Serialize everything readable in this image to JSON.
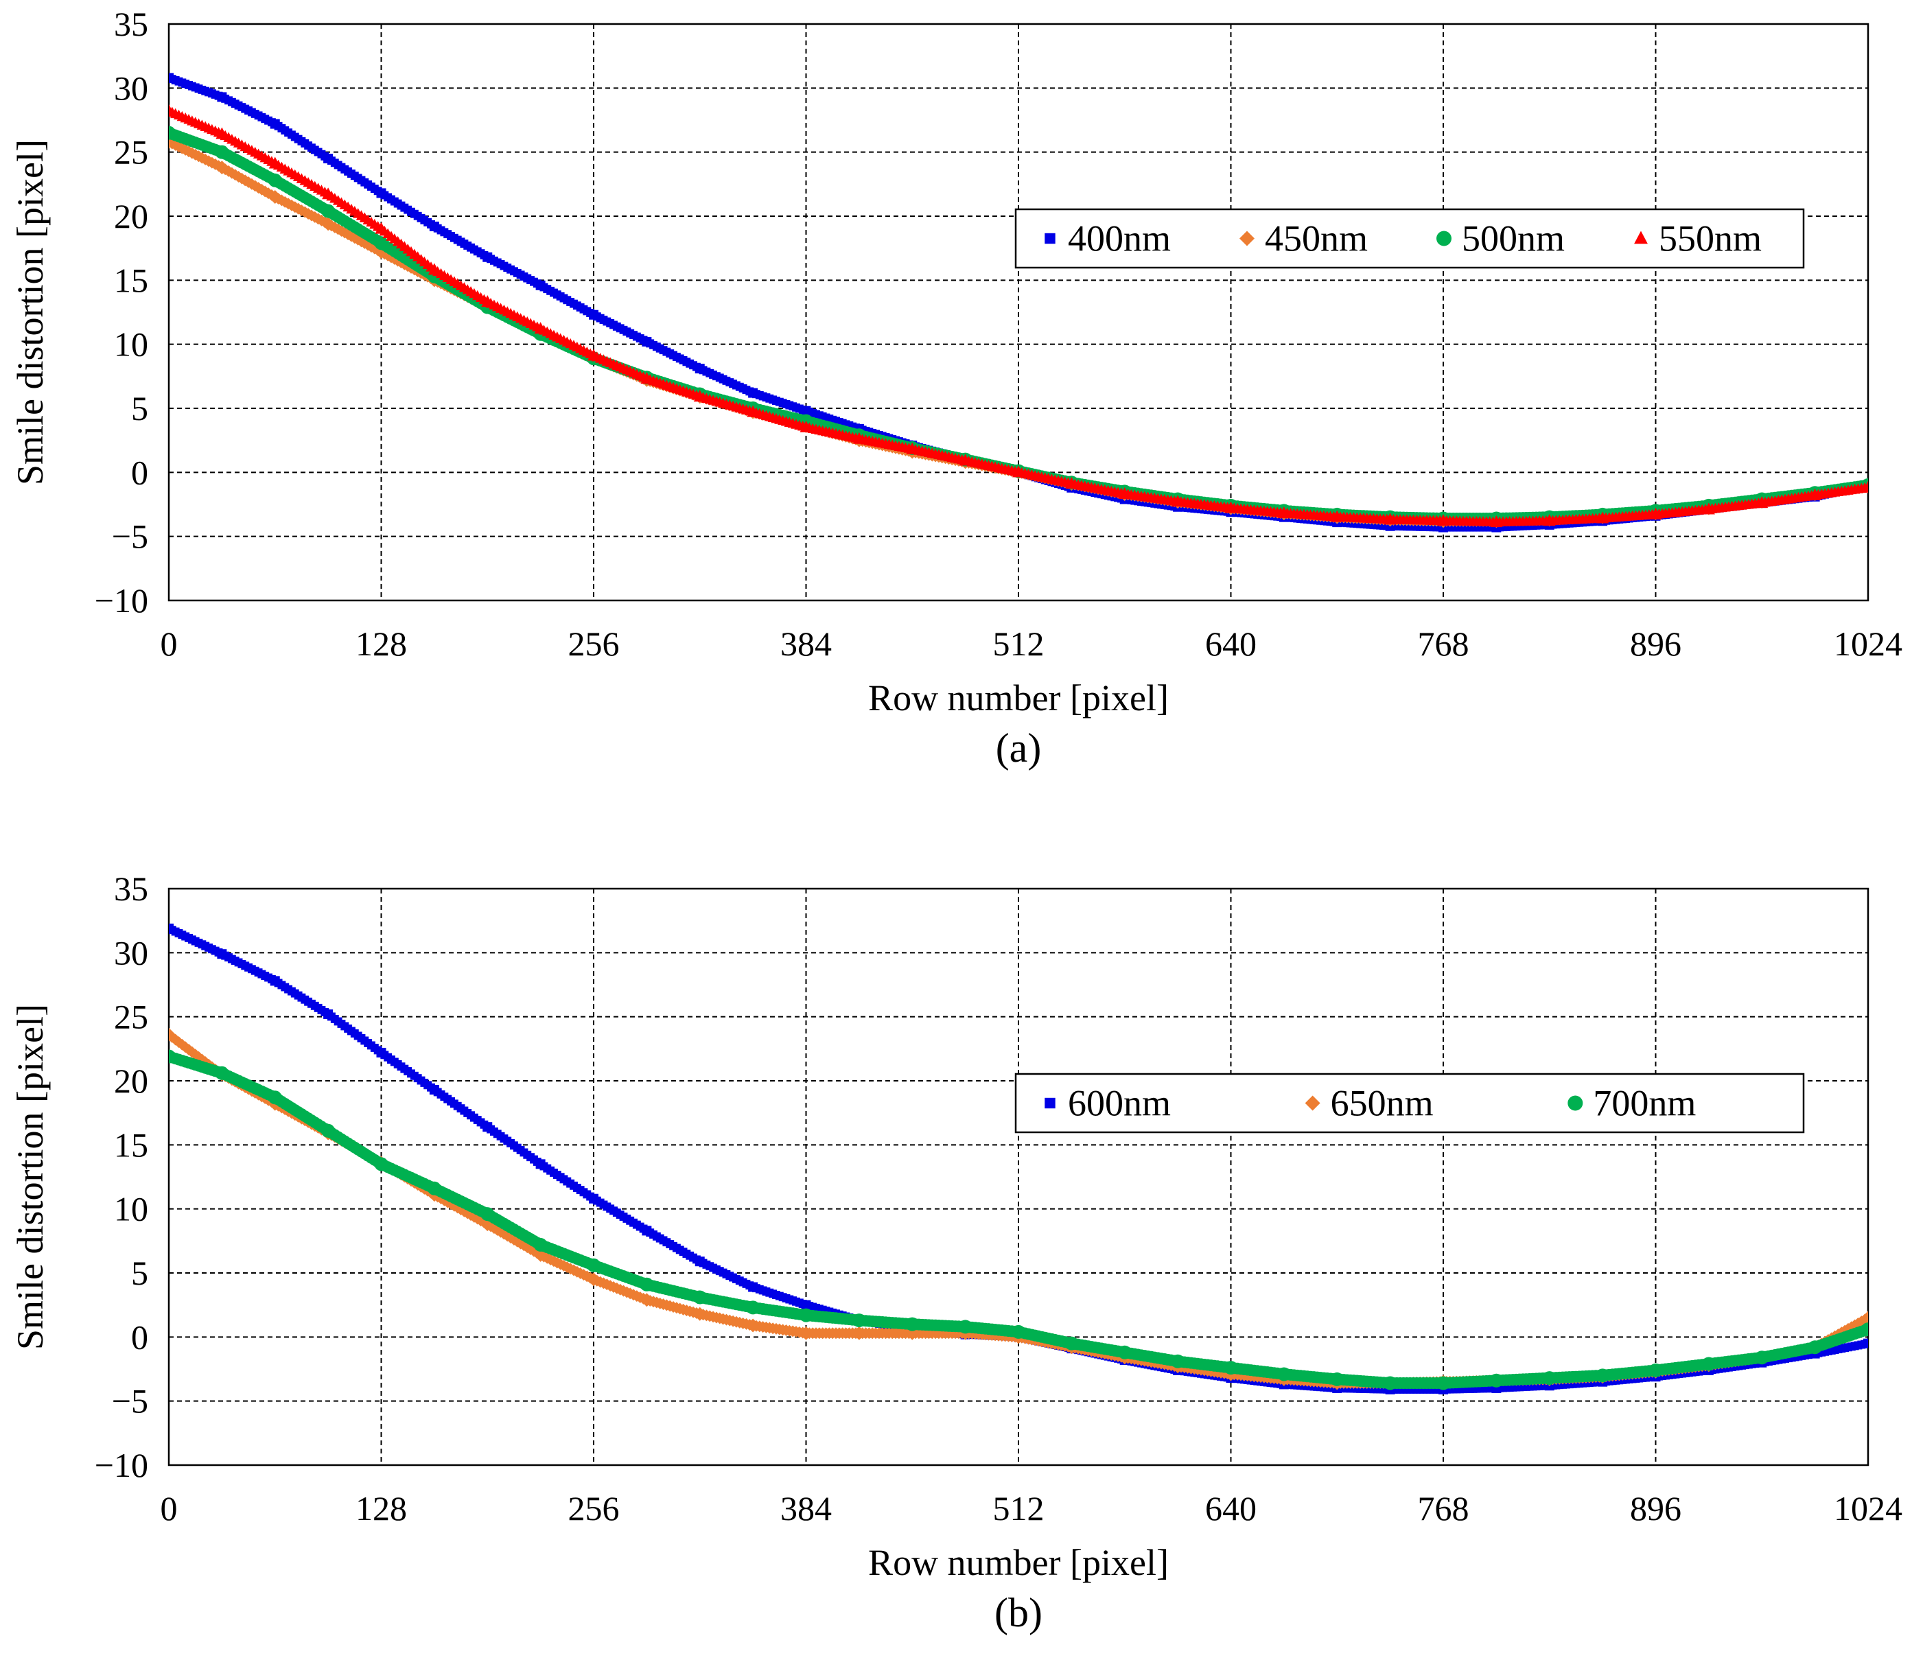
{
  "chart_data": [
    {
      "panel_label": "(a)",
      "type": "scatter",
      "xlabel": "Row number [pixel]",
      "ylabel": "Smile distortion [pixel]",
      "xlim": [
        0,
        1024
      ],
      "ylim": [
        -10,
        35
      ],
      "xticks": [
        0,
        128,
        256,
        384,
        512,
        640,
        768,
        896,
        1024
      ],
      "yticks": [
        -10,
        -5,
        0,
        5,
        10,
        15,
        20,
        25,
        30,
        35
      ],
      "ytick_labels": [
        "−10",
        "−5",
        "0",
        "5",
        "10",
        "15",
        "20",
        "25",
        "30",
        "35"
      ],
      "grid": true,
      "legend_position": "upper-right",
      "series": [
        {
          "name": "400nm",
          "color": "#0000e6",
          "marker": "square",
          "x": [
            0,
            32,
            64,
            96,
            128,
            160,
            192,
            224,
            256,
            288,
            320,
            352,
            384,
            416,
            448,
            480,
            512,
            544,
            576,
            608,
            640,
            672,
            704,
            736,
            768,
            800,
            832,
            864,
            896,
            928,
            960,
            992,
            1024
          ],
          "values": [
            30.8,
            29.3,
            27.2,
            24.5,
            21.8,
            19.2,
            16.8,
            14.6,
            12.3,
            10.2,
            8.1,
            6.2,
            4.8,
            3.4,
            2.1,
            1.0,
            0.0,
            -1.2,
            -2.1,
            -2.7,
            -3.1,
            -3.5,
            -3.9,
            -4.2,
            -4.3,
            -4.3,
            -4.1,
            -3.8,
            -3.4,
            -2.9,
            -2.4,
            -1.9,
            -1.0
          ]
        },
        {
          "name": "450nm",
          "color": "#ed7d31",
          "marker": "diamond",
          "x": [
            0,
            32,
            64,
            96,
            128,
            160,
            192,
            224,
            256,
            288,
            320,
            352,
            384,
            416,
            448,
            480,
            512,
            544,
            576,
            608,
            640,
            672,
            704,
            736,
            768,
            800,
            832,
            864,
            896,
            928,
            960,
            992,
            1024
          ],
          "values": [
            25.8,
            23.8,
            21.5,
            19.4,
            17.2,
            15.0,
            12.9,
            10.9,
            8.9,
            7.2,
            5.9,
            4.7,
            3.6,
            2.5,
            1.6,
            0.8,
            0.0,
            -0.9,
            -1.7,
            -2.3,
            -2.8,
            -3.2,
            -3.5,
            -3.7,
            -3.8,
            -3.8,
            -3.7,
            -3.5,
            -3.2,
            -2.8,
            -2.3,
            -1.7,
            -1.1
          ]
        },
        {
          "name": "500nm",
          "color": "#00b050",
          "marker": "circle",
          "x": [
            0,
            32,
            64,
            96,
            128,
            160,
            192,
            224,
            256,
            288,
            320,
            352,
            384,
            416,
            448,
            480,
            512,
            544,
            576,
            608,
            640,
            672,
            704,
            736,
            768,
            800,
            832,
            864,
            896,
            928,
            960,
            992,
            1024
          ],
          "values": [
            26.5,
            25.0,
            22.8,
            20.4,
            17.9,
            15.3,
            12.9,
            10.8,
            8.9,
            7.4,
            6.1,
            5.0,
            4.0,
            2.9,
            1.9,
            1.0,
            0.1,
            -0.8,
            -1.5,
            -2.1,
            -2.6,
            -3.0,
            -3.3,
            -3.5,
            -3.6,
            -3.6,
            -3.5,
            -3.3,
            -3.0,
            -2.6,
            -2.1,
            -1.6,
            -1.0
          ]
        },
        {
          "name": "550nm",
          "color": "#ff0000",
          "marker": "triangle",
          "x": [
            0,
            32,
            64,
            96,
            128,
            160,
            192,
            224,
            256,
            288,
            320,
            352,
            384,
            416,
            448,
            480,
            512,
            544,
            576,
            608,
            640,
            672,
            704,
            736,
            768,
            800,
            832,
            864,
            896,
            928,
            960,
            992,
            1024
          ],
          "values": [
            28.2,
            26.4,
            24.1,
            21.7,
            19.0,
            15.8,
            13.3,
            11.2,
            9.1,
            7.3,
            5.9,
            4.7,
            3.5,
            2.6,
            1.8,
            0.9,
            0.0,
            -0.9,
            -1.7,
            -2.3,
            -2.8,
            -3.2,
            -3.5,
            -3.7,
            -3.8,
            -3.9,
            -3.8,
            -3.6,
            -3.3,
            -2.9,
            -2.4,
            -1.8,
            -1.2
          ]
        }
      ]
    },
    {
      "panel_label": "(b)",
      "type": "scatter",
      "xlabel": "Row number [pixel]",
      "ylabel": "Smile distortion [pixel]",
      "xlim": [
        0,
        1024
      ],
      "ylim": [
        -10,
        35
      ],
      "xticks": [
        0,
        128,
        256,
        384,
        512,
        640,
        768,
        896,
        1024
      ],
      "yticks": [
        -10,
        -5,
        0,
        5,
        10,
        15,
        20,
        25,
        30,
        35
      ],
      "ytick_labels": [
        "−10",
        "−5",
        "0",
        "5",
        "10",
        "15",
        "20",
        "25",
        "30",
        "35"
      ],
      "grid": true,
      "legend_position": "upper-right",
      "series": [
        {
          "name": "600nm",
          "color": "#0000e6",
          "marker": "square",
          "x": [
            0,
            32,
            64,
            96,
            128,
            160,
            192,
            224,
            256,
            288,
            320,
            352,
            384,
            416,
            448,
            480,
            512,
            544,
            576,
            608,
            640,
            672,
            704,
            736,
            768,
            800,
            832,
            864,
            896,
            928,
            960,
            992,
            1024
          ],
          "values": [
            31.9,
            29.9,
            27.8,
            25.2,
            22.2,
            19.3,
            16.4,
            13.5,
            10.8,
            8.3,
            5.9,
            3.9,
            2.5,
            1.3,
            0.6,
            0.2,
            0.0,
            -0.9,
            -1.8,
            -2.6,
            -3.2,
            -3.7,
            -4.0,
            -4.1,
            -4.1,
            -4.0,
            -3.8,
            -3.5,
            -3.1,
            -2.6,
            -2.0,
            -1.3,
            -0.5
          ]
        },
        {
          "name": "650nm",
          "color": "#ed7d31",
          "marker": "diamond",
          "x": [
            0,
            32,
            64,
            96,
            128,
            160,
            192,
            224,
            256,
            288,
            320,
            352,
            384,
            416,
            448,
            480,
            512,
            544,
            576,
            608,
            640,
            672,
            704,
            736,
            768,
            800,
            832,
            864,
            896,
            928,
            960,
            992,
            1024
          ],
          "values": [
            23.6,
            20.5,
            18.2,
            15.9,
            13.6,
            11.1,
            8.8,
            6.4,
            4.5,
            2.9,
            1.8,
            0.9,
            0.3,
            0.3,
            0.3,
            0.3,
            0.0,
            -0.8,
            -1.6,
            -2.3,
            -2.9,
            -3.3,
            -3.6,
            -3.6,
            -3.5,
            -3.4,
            -3.3,
            -3.1,
            -2.7,
            -2.2,
            -1.6,
            -0.8,
            1.5
          ]
        },
        {
          "name": "700nm",
          "color": "#00b050",
          "marker": "circle",
          "x": [
            0,
            32,
            64,
            96,
            128,
            160,
            192,
            224,
            256,
            288,
            320,
            352,
            384,
            416,
            448,
            480,
            512,
            544,
            576,
            608,
            640,
            672,
            704,
            736,
            768,
            800,
            832,
            864,
            896,
            928,
            960,
            992,
            1024
          ],
          "values": [
            21.9,
            20.6,
            18.7,
            16.1,
            13.5,
            11.6,
            9.6,
            7.2,
            5.6,
            4.1,
            3.1,
            2.3,
            1.7,
            1.3,
            1.0,
            0.8,
            0.4,
            -0.5,
            -1.2,
            -1.9,
            -2.4,
            -2.9,
            -3.3,
            -3.6,
            -3.6,
            -3.4,
            -3.2,
            -3.0,
            -2.6,
            -2.1,
            -1.6,
            -0.8,
            0.6
          ]
        }
      ]
    }
  ]
}
